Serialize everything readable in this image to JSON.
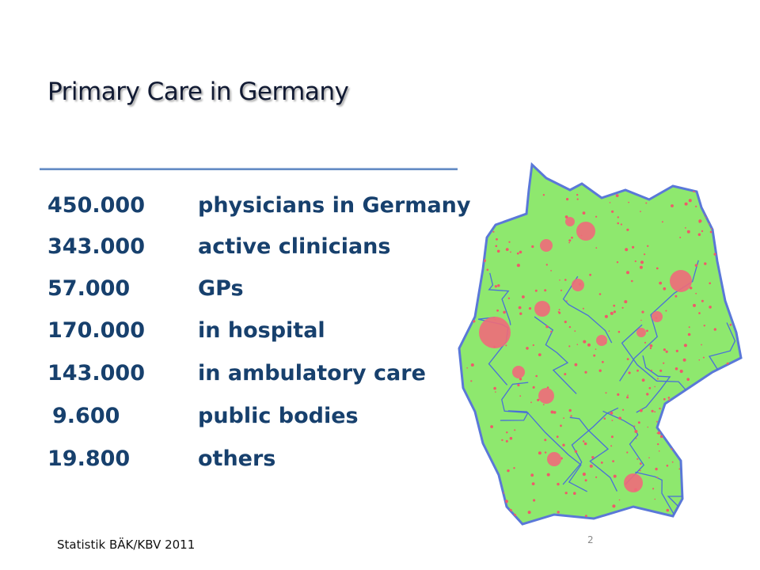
{
  "header": {
    "title": "Primary Care in Germany"
  },
  "table": {
    "rows": [
      [
        "450.000",
        "physicians in Germany"
      ],
      [
        "343.000",
        "active clinicians"
      ],
      [
        "57.000",
        "GPs"
      ],
      [
        "170.000",
        "in hospital"
      ],
      [
        "143.000",
        "in ambulatory care"
      ],
      [
        "9.600",
        "public bodies"
      ],
      [
        "19.800",
        "others"
      ]
    ]
  },
  "footer": {
    "source": "Statistik BÄK/KBV  2011",
    "page": "2"
  }
}
